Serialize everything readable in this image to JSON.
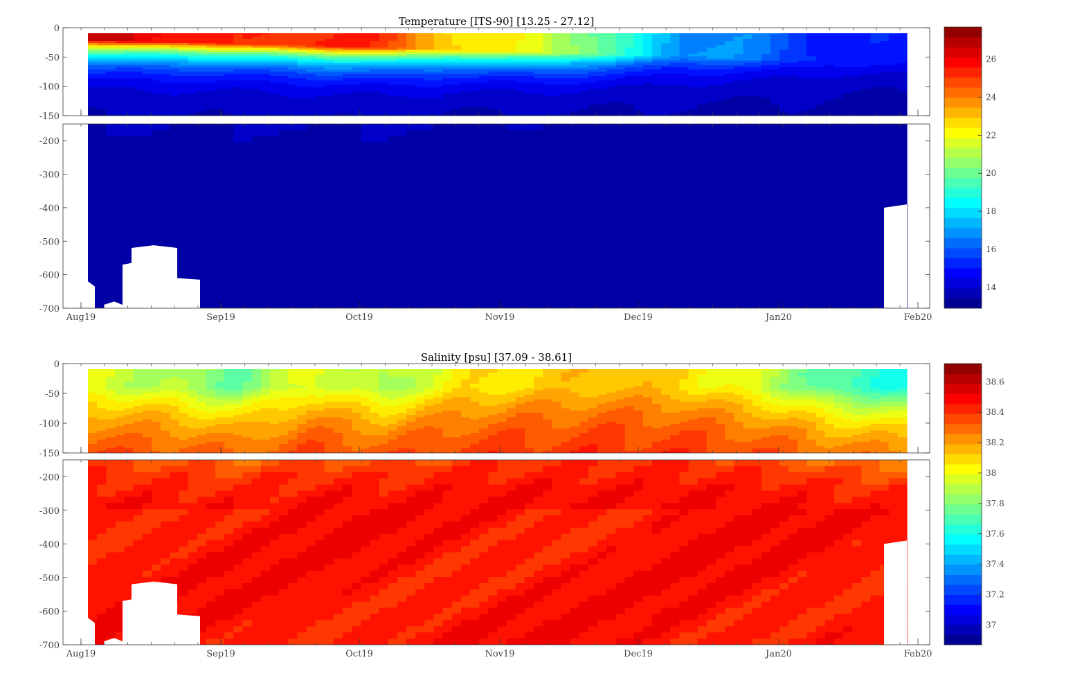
{
  "chart_data": [
    {
      "type": "heatmap",
      "title": "Temperature [ITS-90]   [13.25 - 27.12]",
      "x_ticks": [
        "Aug19",
        "Sep19",
        "Oct19",
        "Nov19",
        "Dec19",
        "Jan20",
        "Feb20"
      ],
      "upper_panel_y_ticks": [
        "0",
        "-50",
        "-100",
        "-150"
      ],
      "lower_panel_y_ticks": [
        "-200",
        "-300",
        "-400",
        "-500",
        "-600",
        "-700"
      ],
      "upper_panel_ylim": [
        -150,
        0
      ],
      "lower_panel_ylim": [
        -700,
        -150
      ],
      "colorbar": {
        "range": [
          12.9,
          27.7
        ],
        "ticks": [
          "14",
          "16",
          "18",
          "20",
          "22",
          "24",
          "26"
        ],
        "tick_values": [
          14,
          16,
          18,
          20,
          22,
          24,
          26
        ]
      },
      "depth_profile_levels": [
        -10,
        -25,
        -45,
        -70,
        -100,
        -150,
        -300,
        -500,
        -700
      ],
      "surface_values": [
        26.6,
        26.0,
        25.0,
        25.5,
        25.0,
        22.5,
        22.0,
        19.5,
        17.0,
        16.5,
        15.0,
        15.0
      ],
      "deep_values": [
        13.6,
        13.6,
        13.6,
        13.6,
        13.5,
        13.5,
        13.5,
        13.5,
        13.5
      ]
    },
    {
      "type": "heatmap",
      "title": "Salinity [psu]   [37.09 - 38.61]",
      "x_ticks": [
        "Aug19",
        "Sep19",
        "Oct19",
        "Nov19",
        "Dec19",
        "Jan20",
        "Feb20"
      ],
      "upper_panel_y_ticks": [
        "0",
        "-50",
        "-100",
        "-150"
      ],
      "lower_panel_y_ticks": [
        "-200",
        "-300",
        "-400",
        "-500",
        "-600",
        "-700"
      ],
      "upper_panel_ylim": [
        -150,
        0
      ],
      "lower_panel_ylim": [
        -700,
        -150
      ],
      "colorbar": {
        "range": [
          36.87,
          38.72
        ],
        "ticks": [
          "37",
          "37.2",
          "37.4",
          "37.6",
          "37.8",
          "38",
          "38.2",
          "38.4",
          "38.6"
        ],
        "tick_values": [
          37.0,
          37.2,
          37.4,
          37.6,
          37.8,
          38.0,
          38.2,
          38.4,
          38.6
        ]
      },
      "depth_profile_levels": [
        -10,
        -25,
        -45,
        -70,
        -100,
        -150,
        -300,
        -500,
        -700
      ],
      "surface_values": [
        37.95,
        37.9,
        37.75,
        38.0,
        37.85,
        38.05,
        38.1,
        38.15,
        38.1,
        37.95,
        37.7,
        37.6
      ],
      "deep_values": [
        38.46,
        38.46,
        38.46,
        38.47,
        38.47,
        38.46,
        38.47,
        38.47,
        38.46
      ]
    }
  ]
}
